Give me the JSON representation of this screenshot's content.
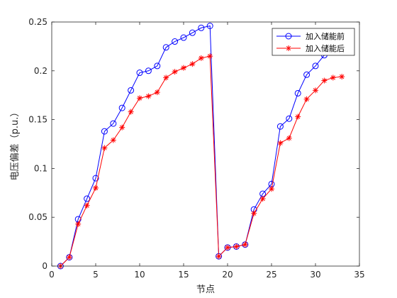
{
  "chart_data": {
    "type": "line",
    "xlabel": "节点",
    "ylabel": "电压偏差（p.u.）",
    "xlim": [
      0,
      35
    ],
    "ylim": [
      0,
      0.25
    ],
    "xticks": [
      "0",
      "5",
      "10",
      "15",
      "20",
      "25",
      "30",
      "35"
    ],
    "yticks": [
      "0",
      "0.05",
      "0.1",
      "0.15",
      "0.2",
      "0.25"
    ],
    "grid": false,
    "legend_position": "top-right",
    "x": [
      1,
      2,
      3,
      4,
      5,
      6,
      7,
      8,
      9,
      10,
      11,
      12,
      13,
      14,
      15,
      16,
      17,
      18,
      19,
      20,
      21,
      22,
      23,
      24,
      25,
      26,
      27,
      28,
      29,
      30,
      31,
      32,
      33
    ],
    "series": [
      {
        "name": "加入储能前",
        "color": "#0000ff",
        "marker": "circle",
        "values": [
          0,
          0.009,
          0.048,
          0.069,
          0.09,
          0.138,
          0.146,
          0.162,
          0.18,
          0.198,
          0.2,
          0.205,
          0.224,
          0.23,
          0.234,
          0.239,
          0.244,
          0.246,
          0.01,
          0.019,
          0.02,
          0.022,
          0.058,
          0.074,
          0.084,
          0.143,
          0.151,
          0.177,
          0.196,
          0.205,
          0.216,
          0.22,
          0.222
        ]
      },
      {
        "name": "加入储能后",
        "color": "#ff0000",
        "marker": "asterisk",
        "values": [
          0,
          0.009,
          0.043,
          0.062,
          0.08,
          0.121,
          0.129,
          0.142,
          0.158,
          0.172,
          0.174,
          0.178,
          0.193,
          0.199,
          0.203,
          0.207,
          0.213,
          0.215,
          0.01,
          0.019,
          0.02,
          0.022,
          0.054,
          0.069,
          0.079,
          0.126,
          0.131,
          0.153,
          0.171,
          0.18,
          0.19,
          0.193,
          0.194
        ]
      }
    ]
  }
}
